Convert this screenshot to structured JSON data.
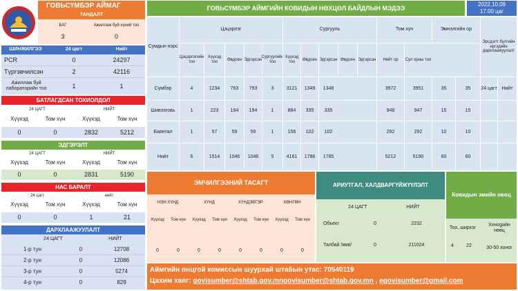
{
  "header": {
    "aimag": "ГОВЬСҮМБЭР АЙМАГ",
    "title": "ГОВЬСҮМБЭР АЙМГИЙН КОВИДЫН НӨХЦӨЛ БАЙДЛЫН МЭДЭЭ",
    "date": "2022.10.09",
    "time": "17.00 цаг"
  },
  "tandalt": {
    "title": "ТАНДАЛТ",
    "col1": "БАГ",
    "col2": "Ажиллаж буй хүний тоо",
    "v1": "3",
    "v2": "0"
  },
  "shinjilgee": {
    "title": "ШИНЖИЛГЭЭ",
    "h24": "24 цагт",
    "hall": "Нийт",
    "rows": [
      {
        "label": "PCR",
        "d": "0",
        "t": "24297"
      },
      {
        "label": "Түргэвчилсэн",
        "d": "2",
        "t": "42116"
      },
      {
        "label": "Ажиллаж буй лабораторийн тоо",
        "d": "1",
        "t": "1"
      }
    ]
  },
  "batalgaasan": {
    "title": "БАТЛАГДСАН ТОХИОЛДОЛ",
    "h24": "24 ЦАГТ",
    "hall": "НИЙТ",
    "c1": "Хүүхэд",
    "c2": "Том хүн",
    "c3": "Хүүхэд",
    "c4": "Том хүн",
    "v1": "0",
    "v2": "0",
    "v3": "2832",
    "v4": "5212"
  },
  "edgerelt": {
    "title": "ЭДГЭРЭЛТ",
    "h24": "24 ЦАГТ",
    "hall": "НИЙТ",
    "c1": "Хүүхэд",
    "c2": "Том хүн",
    "c3": "Хүүхэд",
    "c4": "Том хүн",
    "v1": "0",
    "v2": "0",
    "v3": "2831",
    "v4": "5190"
  },
  "nasbaralt": {
    "title": "НАС БАРАЛТ",
    "h24": "24 цагт",
    "hall": "нийт",
    "c1": "Хүүхэд",
    "c2": "Том хүн",
    "c3": "Хүүхэд",
    "c4": "Том хүн",
    "v1": "0",
    "v2": "0",
    "v3": "1",
    "v4": "21"
  },
  "darhlaajuulalt": {
    "title": "ДАРХЛААЖУУЛАЛТ",
    "h24": "24 ЦАГТ",
    "hall": "НИЙТ",
    "rows": [
      {
        "label": "1-р тун",
        "d": "0",
        "t": "12708"
      },
      {
        "label": "2-р тун",
        "d": "0",
        "t": "12086"
      },
      {
        "label": "3-р тун",
        "d": "0",
        "t": "5274"
      },
      {
        "label": "4-р тун",
        "d": "0",
        "t": "829"
      }
    ]
  },
  "main_table": {
    "col_sum": "Сумдын нэрс",
    "g1": "Цэцэрлэг",
    "g2": "Сургууль",
    "g3": "Том хүн",
    "g4": "Эмнэлгийн ор",
    "g5": "Эрсдэлт бүлгийн иргэдийн дархлаажуулалт",
    "sub": [
      "Цэцэрлэгийн тоо",
      "Хүүхэд тоо",
      "Өвдсөн",
      "Эдгэрсэн",
      "Сургуулийн тоо",
      "Хүүхэд тоо",
      "Өвдсөн",
      "Эдгэрсэн",
      "Өвдсөн",
      "Эдгэрсэн",
      "Нийт ор",
      "Сул орны тоо"
    ],
    "rows": [
      {
        "name": "Сүмбэр",
        "vals": [
          "4",
          "1234",
          "793",
          "793",
          "3",
          "3121",
          "1349",
          "1348",
          "3972",
          "3951",
          "35",
          "35",
          "24 цагт",
          "Нийт"
        ]
      },
      {
        "name": "Шивээговь",
        "vals": [
          "1",
          "223",
          "194",
          "194",
          "1",
          "884",
          "335",
          "335",
          "948",
          "947",
          "15",
          "15",
          "",
          ""
        ]
      },
      {
        "name": "Баянтал",
        "vals": [
          "1",
          "57",
          "59",
          "59",
          "1",
          "156",
          "102",
          "102",
          "292",
          "292",
          "10",
          "10",
          "",
          ""
        ]
      },
      {
        "name": "Нийт",
        "vals": [
          "6",
          "1514",
          "1046",
          "1046",
          "5",
          "4161",
          "1786",
          "1785",
          "5212",
          "5190",
          "60",
          "60",
          "",
          ""
        ]
      }
    ]
  },
  "emchilgee": {
    "title": "ЭМЧИЛГЭЭНИЙ ТАСАГТ",
    "groups": [
      "НЭН ХҮНД",
      "ХҮНД",
      "ХҮНДЭВТЭР",
      "ХӨНГӨН"
    ],
    "sub": [
      "Хүүхэд",
      "Том хүн",
      "Хүүхэд",
      "Том хүн",
      "Хүүхэд",
      "Том хүн",
      "Хүүхэд",
      "Том хүн"
    ],
    "vals": [
      "0",
      "0",
      "0",
      "0",
      "0",
      "0",
      "0",
      "0"
    ]
  },
  "ariutgal": {
    "title": "АРИУТГАЛ, ХАЛДВАРГҮЙЖҮҮЛЭЛТ",
    "h24": "24 ЦАГТ",
    "hall": "НИЙТ",
    "rows": [
      {
        "label": "Обьект",
        "d": "0",
        "t": "2232"
      },
      {
        "label": "Талбай /мкв/",
        "d": "0",
        "t": "211024"
      }
    ]
  },
  "emiin_nootsiin": {
    "title": "Ковидын эмийн нөөц",
    "c1": "Тоо, ширхэг",
    "c2": "Хонogийн нөөц",
    "v1": "4",
    "v2": "22",
    "v3": "30-50 хоног"
  },
  "footer": {
    "line1": "Аймгийн онцгой комиссын шуурхай штабын утас: 70540119",
    "line2_prefix": "Цахим хаяг: ",
    "email1": "govisumber@shtab.gov.mngovisumber@shtab.gov.mn",
    "sep": " , ",
    "email2": "egovisumber@gmail.com"
  },
  "colors": {
    "orange": "#ee7b32",
    "green": "#70ad47",
    "red": "#e8242a",
    "blue": "#4472c4",
    "teal": "#3e8c80",
    "grid": "#d8e4ef"
  }
}
